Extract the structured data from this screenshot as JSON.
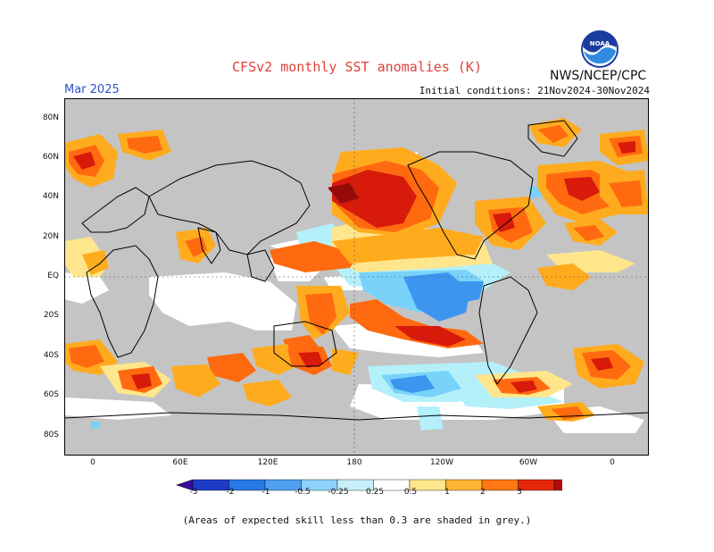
{
  "header": {
    "title": "CFSv2 monthly SST anomalies (K)",
    "agency": "NWS/NCEP/CPC",
    "forecast_month": "Mar 2025",
    "initial_conditions": "Initial conditions: 21Nov2024-30Nov2024"
  },
  "logo": {
    "text": "NOAA",
    "icon": "noaa-logo-icon"
  },
  "map": {
    "lat_labels": [
      "80N",
      "60N",
      "40N",
      "20N",
      "EQ",
      "20S",
      "40S",
      "60S",
      "80S"
    ],
    "lon_labels": [
      "0",
      "60E",
      "120E",
      "180",
      "120W",
      "60W",
      "0"
    ],
    "colors": {
      "land": "#c0c0c0",
      "skill_mask": "#c4c4c4",
      "neutral": "#ffffff",
      "warm_025": "#ffe68c",
      "warm_05": "#ffab1e",
      "warm_1": "#ff6a10",
      "warm_2": "#d81a0a",
      "warm_3": "#960a0a",
      "cool_025": "#b4f0fa",
      "cool_05": "#78d2fa",
      "cool_1": "#3c96f0",
      "cool_2": "#1e50d2"
    }
  },
  "colorbar": {
    "labels": [
      "-3",
      "-2",
      "-1",
      "-0.5",
      "-0.25",
      "0.25",
      "0.5",
      "1",
      "2",
      "3"
    ],
    "colors": [
      "#3c0ca0",
      "#1e3cc8",
      "#2878e6",
      "#50a0f0",
      "#8cd2fa",
      "#c8f0fa",
      "#ffffff",
      "#ffe68c",
      "#ffb432",
      "#ff7814",
      "#e6280a",
      "#b40a0a",
      "#7a4632"
    ]
  },
  "footnote": "(Areas of expected skill less than 0.3 are shaded in grey.)"
}
